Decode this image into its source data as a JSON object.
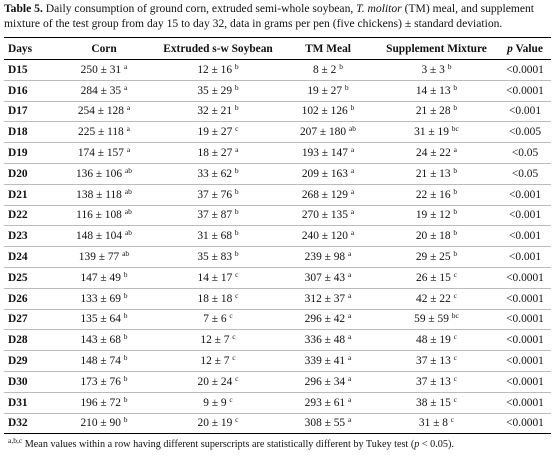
{
  "caption": {
    "label": "Table 5.",
    "text1": " Daily consumption of ground corn, extruded semi-whole soybean, ",
    "italic": "T. molitor",
    "text2": " (TM) meal, and supplement mixture of the test group from day 15 to day 32, data in grams per pen (five chickens) ± standard deviation."
  },
  "table": {
    "header": [
      "Days",
      "Corn",
      "Extruded s-w Soybean",
      "TM Meal",
      "Supplement Mixture",
      {
        "italic": "p",
        "text": " Value"
      }
    ],
    "rows": [
      [
        "D15",
        {
          "v": "250 ± 31",
          "s": "a"
        },
        {
          "v": "12 ± 16",
          "s": "b"
        },
        {
          "v": "8 ± 2",
          "s": "b"
        },
        {
          "v": "3 ± 3",
          "s": "b"
        },
        "<0.0001"
      ],
      [
        "D16",
        {
          "v": "284 ± 35",
          "s": "a"
        },
        {
          "v": "35 ± 29",
          "s": "b"
        },
        {
          "v": "19 ± 27",
          "s": "b"
        },
        {
          "v": "14 ± 13",
          "s": "b"
        },
        "<0.0001"
      ],
      [
        "D17",
        {
          "v": "254 ± 128",
          "s": "a"
        },
        {
          "v": "32 ± 21",
          "s": "b"
        },
        {
          "v": "102 ± 126",
          "s": "b"
        },
        {
          "v": "21 ± 28",
          "s": "b"
        },
        "<0.001"
      ],
      [
        "D18",
        {
          "v": "225 ± 118",
          "s": "a"
        },
        {
          "v": "19 ± 27",
          "s": "c"
        },
        {
          "v": "207 ± 180",
          "s": "ab"
        },
        {
          "v": "31 ± 19",
          "s": "bc"
        },
        "<0.005"
      ],
      [
        "D19",
        {
          "v": "174 ± 157",
          "s": "a"
        },
        {
          "v": "18 ± 27",
          "s": "a"
        },
        {
          "v": "193 ± 147",
          "s": "a"
        },
        {
          "v": "24 ± 22",
          "s": "a"
        },
        "<0.05"
      ],
      [
        "D20",
        {
          "v": "136 ± 106",
          "s": "ab"
        },
        {
          "v": "33 ± 62",
          "s": "b"
        },
        {
          "v": "209 ± 163",
          "s": "a"
        },
        {
          "v": "21 ± 13",
          "s": "b"
        },
        "<0.05"
      ],
      [
        "D21",
        {
          "v": "138 ± 118",
          "s": "ab"
        },
        {
          "v": "37 ± 76",
          "s": "b"
        },
        {
          "v": "268 ± 129",
          "s": "a"
        },
        {
          "v": "22 ± 16",
          "s": "b"
        },
        "<0.001"
      ],
      [
        "D22",
        {
          "v": "116 ± 108",
          "s": "ab"
        },
        {
          "v": "37 ± 87",
          "s": "b"
        },
        {
          "v": "270 ± 135",
          "s": "a"
        },
        {
          "v": "19 ± 12",
          "s": "b"
        },
        "<0.001"
      ],
      [
        "D23",
        {
          "v": "148 ± 104",
          "s": "ab"
        },
        {
          "v": "31 ± 68",
          "s": "b"
        },
        {
          "v": "240 ± 120",
          "s": "a"
        },
        {
          "v": "20 ± 18",
          "s": "b"
        },
        "<0.001"
      ],
      [
        "D24",
        {
          "v": "139 ± 77",
          "s": "ab"
        },
        {
          "v": "35 ± 83",
          "s": "b"
        },
        {
          "v": "239 ± 98",
          "s": "a"
        },
        {
          "v": "29 ± 25",
          "s": "b"
        },
        "<0.001"
      ],
      [
        "D25",
        {
          "v": "147 ± 49",
          "s": "b"
        },
        {
          "v": "14 ± 17",
          "s": "c"
        },
        {
          "v": "307 ± 43",
          "s": "a"
        },
        {
          "v": "26 ± 15",
          "s": "c"
        },
        "<0.0001"
      ],
      [
        "D26",
        {
          "v": "133 ± 69",
          "s": "b"
        },
        {
          "v": "18 ± 18",
          "s": "c"
        },
        {
          "v": "312 ± 37",
          "s": "a"
        },
        {
          "v": "42 ± 22",
          "s": "c"
        },
        "<0.0001"
      ],
      [
        "D27",
        {
          "v": "135 ± 64",
          "s": "b"
        },
        {
          "v": "7 ± 6",
          "s": "c"
        },
        {
          "v": "296 ± 42",
          "s": "a"
        },
        {
          "v": "59 ± 59",
          "s": "bc"
        },
        "<0.0001"
      ],
      [
        "D28",
        {
          "v": "143 ± 68",
          "s": "b"
        },
        {
          "v": "12 ± 7",
          "s": "c"
        },
        {
          "v": "336 ± 48",
          "s": "a"
        },
        {
          "v": "48 ± 19",
          "s": "c"
        },
        "<0.0001"
      ],
      [
        "D29",
        {
          "v": "148 ± 74",
          "s": "b"
        },
        {
          "v": "12 ± 7",
          "s": "c"
        },
        {
          "v": "339 ± 41",
          "s": "a"
        },
        {
          "v": "37 ± 13",
          "s": "c"
        },
        "<0.0001"
      ],
      [
        "D30",
        {
          "v": "173 ± 76",
          "s": "b"
        },
        {
          "v": "20 ± 24",
          "s": "c"
        },
        {
          "v": "296 ± 34",
          "s": "a"
        },
        {
          "v": "37 ± 13",
          "s": "c"
        },
        "<0.0001"
      ],
      [
        "D31",
        {
          "v": "196 ± 72",
          "s": "b"
        },
        {
          "v": "9 ± 9",
          "s": "c"
        },
        {
          "v": "293 ± 61",
          "s": "a"
        },
        {
          "v": "38 ± 15",
          "s": "c"
        },
        "<0.0001"
      ],
      [
        "D32",
        {
          "v": "210 ± 90",
          "s": "b"
        },
        {
          "v": "20 ± 19",
          "s": "c"
        },
        {
          "v": "308 ± 55",
          "s": "a"
        },
        {
          "v": "31 ± 8",
          "s": "c"
        },
        "<0.0001"
      ]
    ]
  },
  "footnote": {
    "sup": "a,b,c",
    "text1": " Mean values within a row having different superscripts are statistically different by Tukey test (",
    "italic": "p",
    "text2": " < 0.05)."
  }
}
